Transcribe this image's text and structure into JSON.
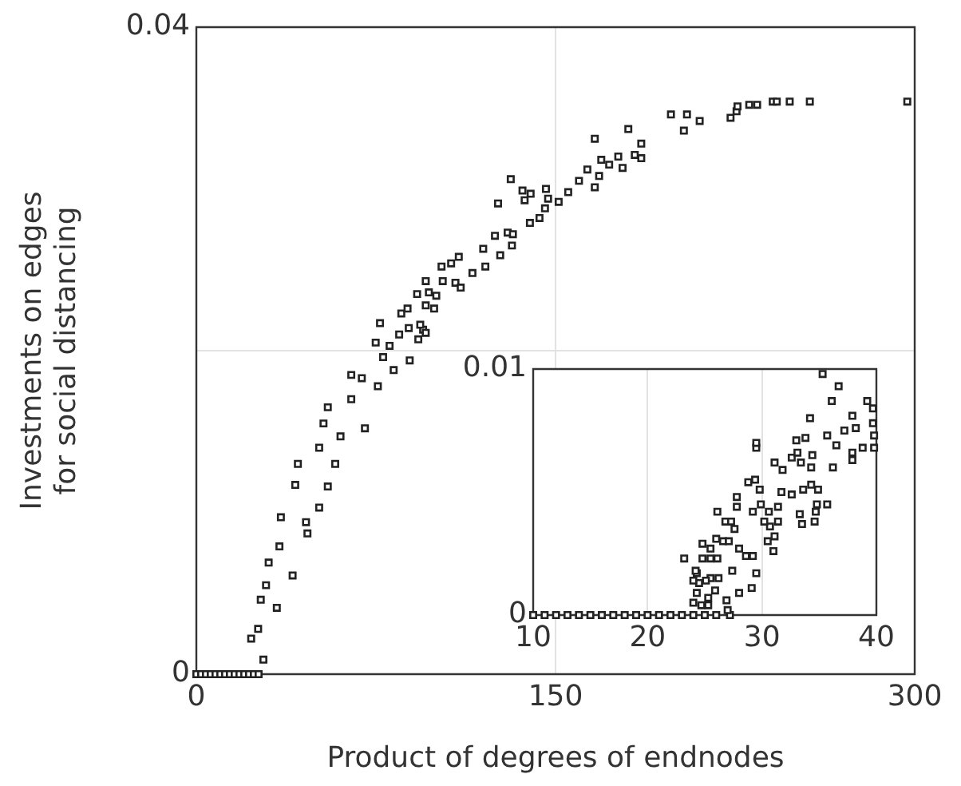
{
  "chart_data": [
    {
      "type": "scatter",
      "xlabel": "Product of degrees of endnodes",
      "ylabel": "Investments on edges for social distancing",
      "marker": "square",
      "color": "#222222",
      "grid": true,
      "xlim": [
        0,
        300
      ],
      "ylim": [
        0,
        0.04
      ],
      "xticks": [
        0,
        150,
        300
      ],
      "yticks": [
        0,
        {
          "value": 0.02,
          "label": null
        },
        0.04
      ],
      "x": [
        0,
        2,
        4,
        6,
        8,
        10,
        12,
        14,
        16,
        18,
        20,
        22,
        24,
        26,
        28,
        22.9,
        25.8,
        26.9,
        29.1,
        30.2,
        33.6,
        34.7,
        35.3,
        40.2,
        41.3,
        42.4,
        45.8,
        46.4,
        51.3,
        51.3,
        53.1,
        54.9,
        54.9,
        58,
        60.2,
        64.7,
        64.7,
        69.1,
        70.4,
        75.8,
        78,
        82.4,
        89.1,
        94.7,
        74.9,
        76.7,
        80.7,
        84.7,
        85.6,
        88.2,
        88.7,
        92.7,
        93.5,
        95.8,
        95.8,
        92.2,
        97.1,
        100.2,
        99.3,
        95.8,
        102.9,
        108.2,
        110.4,
        102.4,
        106.4,
        109.6,
        115.3,
        120.7,
        119.8,
        126.9,
        131.8,
        124.7,
        130,
        132.2,
        126,
        131.3,
        137.1,
        136.2,
        139.6,
        139.3,
        143.3,
        145.6,
        146,
        146.9,
        151.3,
        155.3,
        159.8,
        163.3,
        166.4,
        166.4,
        168.2,
        169.1,
        172.4,
        176.2,
        178,
        183.1,
        180.4,
        185.8,
        185.8,
        198.2,
        203.6,
        204.9,
        210.2,
        223.1,
        225.6,
        226,
        230.9,
        234.2,
        240.7,
        242.4,
        247.8,
        256.2,
        296.9
      ],
      "values": [
        0,
        0,
        0,
        0,
        0,
        0,
        0,
        0,
        0,
        0,
        0,
        0,
        0,
        0,
        0.0009,
        0.0022,
        0.0028,
        0.0046,
        0.0055,
        0.0069,
        0.0041,
        0.0079,
        0.0097,
        0.0061,
        0.0117,
        0.013,
        0.0094,
        0.0087,
        0.014,
        0.0103,
        0.0155,
        0.0165,
        0.0116,
        0.013,
        0.0147,
        0.0185,
        0.017,
        0.0183,
        0.0152,
        0.0178,
        0.0196,
        0.0188,
        0.0194,
        0.0213,
        0.0205,
        0.0217,
        0.0203,
        0.021,
        0.0223,
        0.0226,
        0.0214,
        0.0207,
        0.0216,
        0.0211,
        0.0228,
        0.0235,
        0.0236,
        0.0234,
        0.0226,
        0.0243,
        0.0243,
        0.0242,
        0.0239,
        0.0252,
        0.0254,
        0.0258,
        0.0248,
        0.0252,
        0.0263,
        0.0259,
        0.0265,
        0.0271,
        0.0273,
        0.0272,
        0.0291,
        0.0306,
        0.0293,
        0.0299,
        0.0297,
        0.0279,
        0.0282,
        0.0288,
        0.03,
        0.0294,
        0.0292,
        0.0298,
        0.0305,
        0.0312,
        0.0331,
        0.0301,
        0.0308,
        0.0318,
        0.0315,
        0.032,
        0.0313,
        0.0321,
        0.0337,
        0.0319,
        0.0328,
        0.0346,
        0.0336,
        0.0346,
        0.0342,
        0.0344,
        0.0348,
        0.0351,
        0.0352,
        0.0352,
        0.0354,
        0.0354,
        0.0354,
        0.0354,
        0.0354
      ]
    },
    {
      "type": "scatter",
      "marker": "square",
      "color": "#222222",
      "grid": true,
      "xlim": [
        10,
        40
      ],
      "ylim": [
        0,
        0.01
      ],
      "xticks": [
        10,
        20,
        30,
        40
      ],
      "yticks": [
        0,
        0.01
      ],
      "x": [
        10,
        11,
        12,
        13,
        14,
        15,
        16,
        17,
        18,
        19,
        20,
        21,
        22,
        23,
        24,
        25,
        26,
        27.2,
        27,
        26.9,
        24,
        24.7,
        25.3,
        24.3,
        25.9,
        25.3,
        28,
        29.1,
        29.5,
        27.4,
        26.2,
        25.5,
        25.1,
        24.5,
        24,
        24.3,
        24.2,
        23.2,
        24.8,
        25.5,
        26.1,
        24.8,
        25.5,
        26,
        26.6,
        27.1,
        28,
        28.6,
        29.2,
        27.6,
        26.8,
        27.3,
        26.1,
        27.8,
        27.8,
        31,
        30.5,
        31.1,
        30.7,
        31.4,
        30.2,
        29.2,
        29.9,
        30.6,
        31.4,
        33.5,
        33.3,
        34.6,
        34.7,
        34.8,
        35.7,
        31.7,
        32.6,
        33.6,
        34.9,
        34.3,
        29.8,
        28.8,
        29.4,
        29.5,
        29.5,
        31.8,
        31.1,
        34.3,
        33.4,
        32.6,
        33.1,
        33,
        33.8,
        34.4,
        36.2,
        37.9,
        37.9,
        36.5,
        35.7,
        37.2,
        38.8,
        39.8,
        39.8,
        34.2,
        38.2,
        39.7,
        37.9,
        39.7,
        39.2,
        36.1,
        36.7,
        35.3
      ],
      "values": [
        0,
        0,
        0,
        0,
        0,
        0,
        0,
        0,
        0,
        0,
        0,
        0,
        0,
        0,
        0,
        0,
        0,
        0,
        0.0002,
        0.0006,
        0.0005,
        0.0004,
        0.0004,
        0.0009,
        0.001,
        0.0007,
        0.0009,
        0.0011,
        0.0017,
        0.0018,
        0.0015,
        0.0015,
        0.0014,
        0.0013,
        0.0014,
        0.0017,
        0.0018,
        0.0023,
        0.0023,
        0.0023,
        0.0023,
        0.0029,
        0.0027,
        0.0031,
        0.003,
        0.003,
        0.0027,
        0.0024,
        0.0024,
        0.0035,
        0.0038,
        0.0038,
        0.0042,
        0.0044,
        0.0048,
        0.0026,
        0.003,
        0.0032,
        0.0036,
        0.0038,
        0.0038,
        0.0042,
        0.0045,
        0.0042,
        0.0044,
        0.0037,
        0.0041,
        0.0038,
        0.0042,
        0.0045,
        0.0045,
        0.005,
        0.0049,
        0.0051,
        0.0051,
        0.0053,
        0.0051,
        0.0054,
        0.0055,
        0.0068,
        0.007,
        0.0059,
        0.0062,
        0.006,
        0.0062,
        0.0064,
        0.0066,
        0.0071,
        0.0072,
        0.0065,
        0.006,
        0.0063,
        0.0066,
        0.0069,
        0.0073,
        0.0075,
        0.0068,
        0.0068,
        0.0073,
        0.008,
        0.0076,
        0.0078,
        0.0081,
        0.0084,
        0.0087,
        0.0087,
        0.0093,
        0.0098
      ]
    }
  ]
}
